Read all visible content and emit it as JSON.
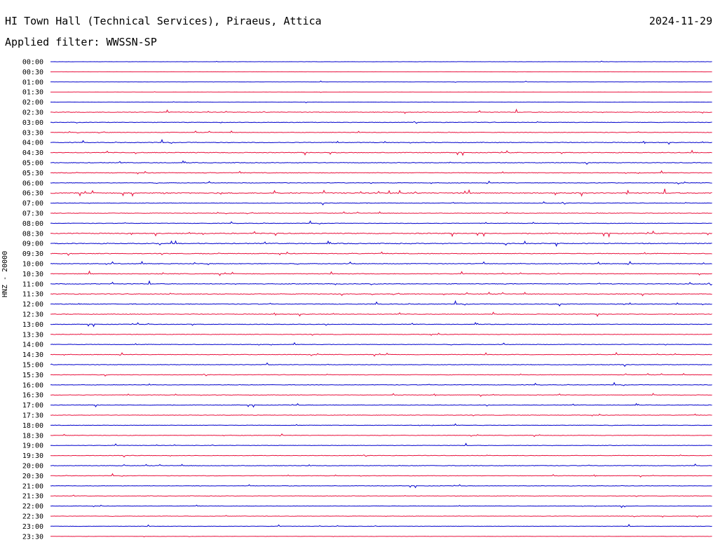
{
  "header": {
    "station": "HI Town Hall (Technical Services), Piraeus, Attica",
    "date": "2024-11-29",
    "filter_prefix": "Applied filter: ",
    "filter": "WWSSN-SP"
  },
  "chart_data": {
    "type": "helicorder",
    "ylabel": "HNZ - 20000",
    "row_labels": [
      "00:00",
      "00:30",
      "01:00",
      "01:30",
      "02:00",
      "02:30",
      "03:00",
      "03:30",
      "04:00",
      "04:30",
      "05:00",
      "05:30",
      "06:00",
      "06:30",
      "07:00",
      "07:30",
      "08:00",
      "08:30",
      "09:00",
      "09:30",
      "10:00",
      "10:30",
      "11:00",
      "11:30",
      "12:00",
      "12:30",
      "13:00",
      "13:30",
      "14:00",
      "14:30",
      "15:00",
      "15:30",
      "16:00",
      "16:30",
      "17:00",
      "17:30",
      "18:00",
      "18:30",
      "19:00",
      "19:30",
      "20:00",
      "20:30",
      "21:00",
      "21:30",
      "22:00",
      "22:30",
      "23:00",
      "23:30"
    ],
    "colors": [
      "#0000cc",
      "#e8103c"
    ],
    "activity": [
      0.15,
      0.1,
      0.2,
      0.12,
      0.15,
      0.55,
      0.45,
      0.5,
      0.55,
      0.6,
      0.55,
      0.55,
      0.5,
      0.85,
      0.5,
      0.5,
      0.45,
      0.75,
      0.7,
      0.6,
      0.6,
      0.55,
      0.55,
      0.6,
      0.6,
      0.55,
      0.5,
      0.5,
      0.5,
      0.5,
      0.5,
      0.45,
      0.45,
      0.45,
      0.45,
      0.4,
      0.4,
      0.4,
      0.4,
      0.4,
      0.45,
      0.4,
      0.4,
      0.4,
      0.35,
      0.3,
      0.35,
      0.25
    ]
  }
}
